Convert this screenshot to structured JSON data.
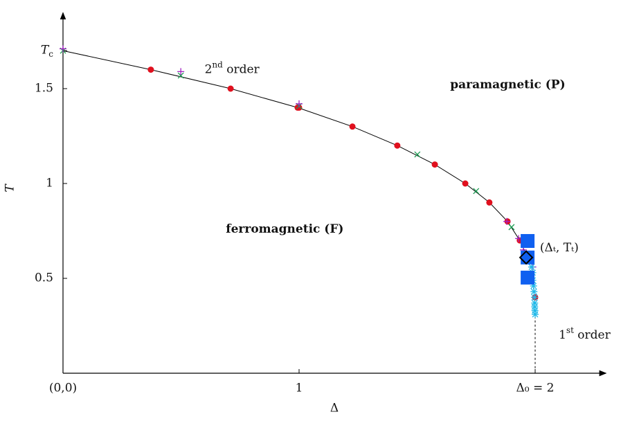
{
  "chart_data": {
    "type": "scatter",
    "x_label": "Δ",
    "y_label": "T",
    "xlim": [
      0,
      2.3
    ],
    "ylim": [
      0,
      1.9
    ],
    "xticks": [
      {
        "value": 0,
        "label": "(0,0)"
      },
      1,
      {
        "value": 2,
        "label": "Δ₀ = 2"
      }
    ],
    "yticks": [
      0.5,
      1,
      1.5,
      {
        "value": 1.7,
        "label": "T",
        "sub": "c"
      }
    ],
    "curve": {
      "type": "line",
      "color": "#000000",
      "x": [
        0,
        0.372,
        0.71,
        0.994,
        1.226,
        1.416,
        1.575,
        1.704,
        1.806,
        1.883,
        1.935,
        1.968
      ],
      "values": [
        1.7,
        1.6,
        1.5,
        1.4,
        1.3,
        1.2,
        1.1,
        1.0,
        0.9,
        0.8,
        0.7,
        0.61
      ]
    },
    "first_order_line": {
      "x": [
        2,
        2
      ],
      "values": [
        0.3,
        0
      ]
    },
    "series": [
      {
        "marker": "circle",
        "color": "#e0101e",
        "x": [
          0.372,
          0.71,
          0.994,
          1.0,
          1.226,
          1.416,
          1.575,
          1.704,
          1.806,
          1.883,
          1.935,
          2.0
        ],
        "values": [
          1.6,
          1.5,
          1.4,
          1.4,
          1.3,
          1.2,
          1.1,
          1.0,
          0.9,
          0.8,
          0.7,
          0.4
        ]
      },
      {
        "marker": "cross",
        "color": "#1a9a50",
        "x": [
          0,
          0.499,
          1.0,
          1.501,
          1.75,
          1.9
        ],
        "values": [
          1.7,
          1.569,
          1.408,
          1.153,
          0.96,
          0.77
        ]
      },
      {
        "marker": "plus",
        "color": "#a020c0",
        "x": [
          0,
          0.499,
          1.0,
          1.88,
          1.93,
          1.95,
          1.99
        ],
        "values": [
          1.71,
          1.59,
          1.42,
          0.8,
          0.71,
          0.65,
          0.56
        ]
      },
      {
        "marker": "asterisk",
        "color": "#20b8e8",
        "x": [
          1.985,
          1.99,
          1.99,
          1.993,
          1.995,
          1.997,
          1.998,
          1.998,
          1.999,
          2.0
        ],
        "values": [
          0.56,
          0.53,
          0.49,
          0.46,
          0.43,
          0.4,
          0.37,
          0.35,
          0.33,
          0.31
        ]
      },
      {
        "marker": "square",
        "color": "#1060f0",
        "x": [
          1.968,
          1.968,
          1.968
        ],
        "values": [
          0.697,
          0.61,
          0.504
        ]
      },
      {
        "marker": "diamond",
        "color": "#000000",
        "x": [
          1.962
        ],
        "values": [
          0.61
        ]
      }
    ],
    "annotations": [
      {
        "text": "2",
        "sup": "nd",
        "tail": " order",
        "x": 0.6,
        "y": 1.6
      },
      {
        "text": "paramagnetic (P)",
        "x": 1.64,
        "y": 1.52,
        "bold": true
      },
      {
        "text": "ferromagnetic (F)",
        "x": 0.69,
        "y": 0.76,
        "bold": true
      },
      {
        "text": "(Δₜ, Tₜ)",
        "x": 2.02,
        "y": 0.66
      },
      {
        "text": "1",
        "sup": "st",
        "tail": " order",
        "x": 2.1,
        "y": 0.2
      }
    ]
  }
}
